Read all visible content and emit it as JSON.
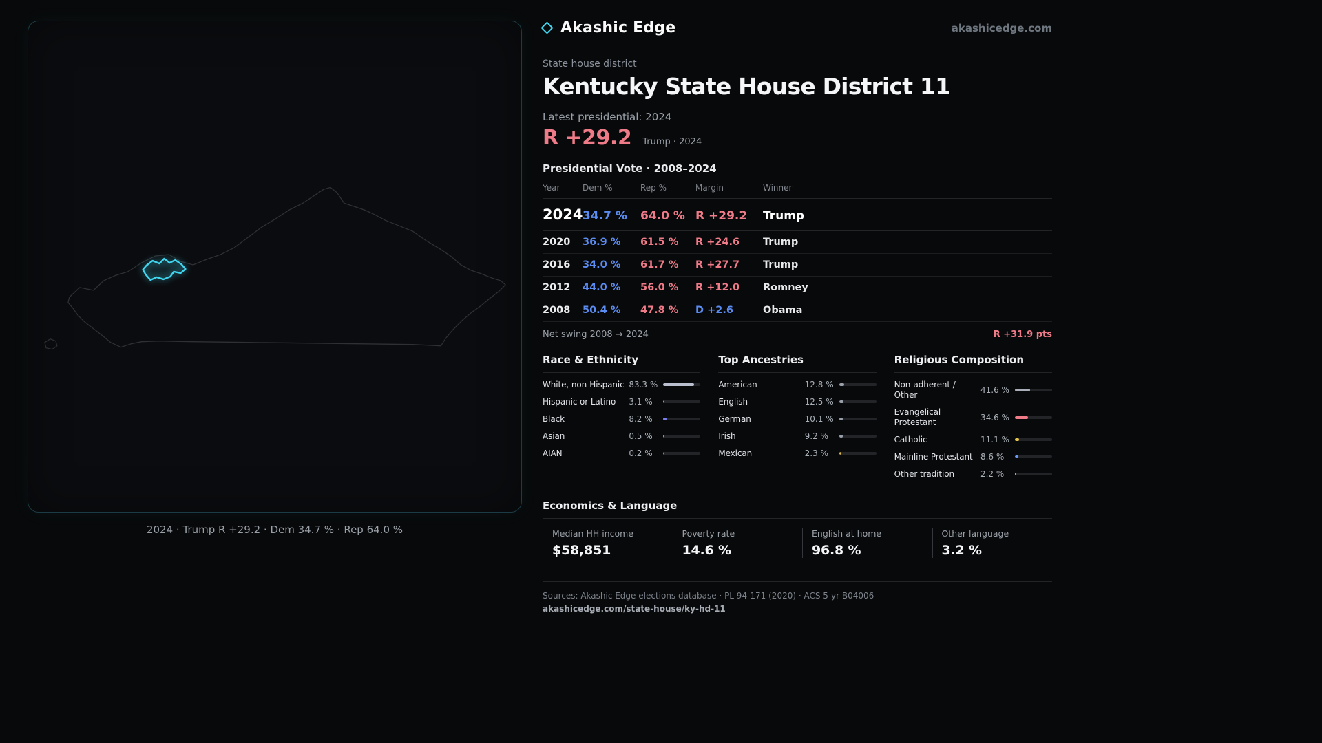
{
  "colors": {
    "accent": "#41d6f0",
    "dem": "#5b8cf2",
    "rep": "#ef7a88"
  },
  "brand": {
    "name": "Akashic Edge",
    "domain": "akashicedge.com"
  },
  "map": {
    "caption": "2024 · Trump R +29.2 · Dem 34.7 % · Rep 64.0 %"
  },
  "header": {
    "kicker": "State house district",
    "title": "Kentucky State House District 11",
    "latest_label": "Latest presidential: 2024",
    "headline_margin": "R +29.2",
    "headline_note": "Trump · 2024"
  },
  "vote_table": {
    "title": "Presidential Vote · 2008–2024",
    "columns": [
      "Year",
      "Dem %",
      "Rep %",
      "Margin",
      "Winner"
    ],
    "rows": [
      {
        "year": "2024",
        "dem": "34.7 %",
        "rep": "64.0 %",
        "margin": "R +29.2",
        "party": "R",
        "winner": "Trump",
        "featured": true
      },
      {
        "year": "2020",
        "dem": "36.9 %",
        "rep": "61.5 %",
        "margin": "R +24.6",
        "party": "R",
        "winner": "Trump",
        "featured": false
      },
      {
        "year": "2016",
        "dem": "34.0 %",
        "rep": "61.7 %",
        "margin": "R +27.7",
        "party": "R",
        "winner": "Trump",
        "featured": false
      },
      {
        "year": "2012",
        "dem": "44.0 %",
        "rep": "56.0 %",
        "margin": "R +12.0",
        "party": "R",
        "winner": "Romney",
        "featured": false
      },
      {
        "year": "2008",
        "dem": "50.4 %",
        "rep": "47.8 %",
        "margin": "D +2.6",
        "party": "D",
        "winner": "Obama",
        "featured": false
      }
    ],
    "net_swing_label": "Net swing 2008 → 2024",
    "net_swing_value": "R +31.9 pts"
  },
  "demographics": {
    "race": {
      "title": "Race & Ethnicity",
      "rows": [
        {
          "label": "White, non-Hispanic",
          "value": "83.3 %",
          "pct": 83.3,
          "color": "#b9bfcf"
        },
        {
          "label": "Hispanic or Latino",
          "value": "3.1 %",
          "pct": 3.1,
          "color": "#e0993c"
        },
        {
          "label": "Black",
          "value": "8.2 %",
          "pct": 8.2,
          "color": "#7b7ff0"
        },
        {
          "label": "Asian",
          "value": "0.5 %",
          "pct": 0.5,
          "color": "#3fc9b7"
        },
        {
          "label": "AIAN",
          "value": "0.2 %",
          "pct": 0.2,
          "color": "#e06a6a"
        }
      ]
    },
    "ancestries": {
      "title": "Top Ancestries",
      "rows": [
        {
          "label": "American",
          "value": "12.8 %",
          "pct": 12.8,
          "color": "#9aa0ab"
        },
        {
          "label": "English",
          "value": "12.5 %",
          "pct": 12.5,
          "color": "#9aa0ab"
        },
        {
          "label": "German",
          "value": "10.1 %",
          "pct": 10.1,
          "color": "#9aa0ab"
        },
        {
          "label": "Irish",
          "value": "9.2 %",
          "pct": 9.2,
          "color": "#9aa0ab"
        },
        {
          "label": "Mexican",
          "value": "2.3 %",
          "pct": 2.3,
          "color": "#d9b54a"
        }
      ]
    },
    "religion": {
      "title": "Religious Composition",
      "rows": [
        {
          "label": "Non-adherent / Other",
          "value": "41.6 %",
          "pct": 41.6,
          "color": "#a9aeb9"
        },
        {
          "label": "Evangelical Protestant",
          "value": "34.6 %",
          "pct": 34.6,
          "color": "#ef7a88"
        },
        {
          "label": "Catholic",
          "value": "11.1 %",
          "pct": 11.1,
          "color": "#e3c24d"
        },
        {
          "label": "Mainline Protestant",
          "value": "8.6 %",
          "pct": 8.6,
          "color": "#6b9af5"
        },
        {
          "label": "Other tradition",
          "value": "2.2 %",
          "pct": 2.2,
          "color": "#a9aeb9"
        }
      ]
    }
  },
  "economics": {
    "title": "Economics & Language",
    "stats": [
      {
        "label": "Median HH income",
        "value": "$58,851"
      },
      {
        "label": "Poverty rate",
        "value": "14.6 %"
      },
      {
        "label": "English at home",
        "value": "96.8 %"
      },
      {
        "label": "Other language",
        "value": "3.2 %"
      }
    ]
  },
  "footer": {
    "sources": "Sources: Akashic Edge elections database · PL 94-171 (2020) · ACS 5-yr B04006",
    "permalink": "akashicedge.com/state-house/ky-hd-11"
  },
  "chart_data": [
    {
      "type": "table",
      "title": "Presidential Vote · 2008–2024",
      "columns": [
        "Year",
        "Dem %",
        "Rep %",
        "Margin",
        "Winner"
      ],
      "rows": [
        [
          "2024",
          34.7,
          64.0,
          "R +29.2",
          "Trump"
        ],
        [
          "2020",
          36.9,
          61.5,
          "R +24.6",
          "Trump"
        ],
        [
          "2016",
          34.0,
          61.7,
          "R +27.7",
          "Trump"
        ],
        [
          "2012",
          44.0,
          56.0,
          "R +12.0",
          "Romney"
        ],
        [
          "2008",
          50.4,
          47.8,
          "D +2.6",
          "Obama"
        ]
      ],
      "note": "Net swing 2008 → 2024: R +31.9 pts"
    },
    {
      "type": "bar",
      "title": "Race & Ethnicity",
      "categories": [
        "White, non-Hispanic",
        "Hispanic or Latino",
        "Black",
        "Asian",
        "AIAN"
      ],
      "values": [
        83.3,
        3.1,
        8.2,
        0.5,
        0.2
      ],
      "unit": "%",
      "xlim": [
        0,
        100
      ],
      "legend_position": "none",
      "grid": false
    },
    {
      "type": "bar",
      "title": "Top Ancestries",
      "categories": [
        "American",
        "English",
        "German",
        "Irish",
        "Mexican"
      ],
      "values": [
        12.8,
        12.5,
        10.1,
        9.2,
        2.3
      ],
      "unit": "%",
      "xlim": [
        0,
        100
      ],
      "legend_position": "none",
      "grid": false
    },
    {
      "type": "bar",
      "title": "Religious Composition",
      "categories": [
        "Non-adherent / Other",
        "Evangelical Protestant",
        "Catholic",
        "Mainline Protestant",
        "Other tradition"
      ],
      "values": [
        41.6,
        34.6,
        11.1,
        8.6,
        2.2
      ],
      "unit": "%",
      "xlim": [
        0,
        100
      ],
      "legend_position": "none",
      "grid": false
    },
    {
      "type": "table",
      "title": "Economics & Language",
      "columns": [
        "Median HH income",
        "Poverty rate",
        "English at home",
        "Other language"
      ],
      "rows": [
        [
          "$58,851",
          "14.6 %",
          "96.8 %",
          "3.2 %"
        ]
      ]
    }
  ]
}
